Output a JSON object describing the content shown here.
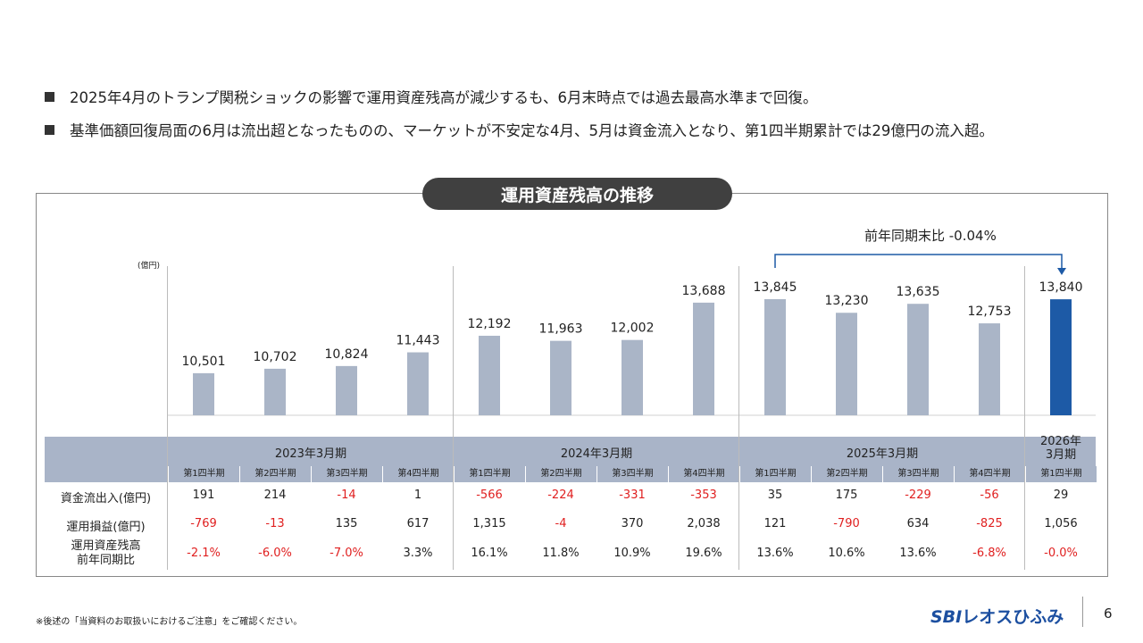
{
  "bullets": [
    "2025年4月のトランプ関税ショックの影響で運用資産残高が減少するも、6月末時点では過去最高水準まで回復。",
    "基準価額回復局面の6月は流出超となったものの、マーケットが不安定な4月、5月は資金流入となり、第1四半期累計では29億円の流入超。"
  ],
  "chart_title": "運用資産残高の推移",
  "chart_data": {
    "type": "bar",
    "title": "運用資産残高の推移",
    "ylabel": "(億円)",
    "categories": [
      "2023年3月期 第1四半期",
      "2023年3月期 第2四半期",
      "2023年3月期 第3四半期",
      "2023年3月期 第4四半期",
      "2024年3月期 第1四半期",
      "2024年3月期 第2四半期",
      "2024年3月期 第3四半期",
      "2024年3月期 第4四半期",
      "2025年3月期 第1四半期",
      "2025年3月期 第2四半期",
      "2025年3月期 第3四半期",
      "2025年3月期 第4四半期",
      "2026年3月期 第1四半期"
    ],
    "values": [
      10501,
      10702,
      10824,
      11443,
      12192,
      11963,
      12002,
      13688,
      13845,
      13230,
      13635,
      12753,
      13840
    ],
    "value_labels": [
      "10,501",
      "10,702",
      "10,824",
      "11,443",
      "12,192",
      "11,963",
      "12,002",
      "13,688",
      "13,845",
      "13,230",
      "13,635",
      "12,753",
      "13,840"
    ],
    "highlight_index": 12,
    "colors": {
      "bar": "#aab5c7",
      "highlight": "#1d5aa6"
    },
    "annotation": "前年同期末比 -0.04%"
  },
  "table": {
    "years": [
      "2023年3月期",
      "2024年3月期",
      "2025年3月期",
      "2026年\n3月期"
    ],
    "quarters": [
      "第1四半期",
      "第2四半期",
      "第3四半期",
      "第4四半期",
      "第1四半期",
      "第2四半期",
      "第3四半期",
      "第4四半期",
      "第1四半期",
      "第2四半期",
      "第3四半期",
      "第4四半期",
      "第1四半期"
    ],
    "rows": [
      {
        "label": "資金流出入(億円)",
        "values": [
          "191",
          "214",
          "-14",
          "1",
          "-566",
          "-224",
          "-331",
          "-353",
          "35",
          "175",
          "-229",
          "-56",
          "29"
        ]
      },
      {
        "label": "運用損益(億円)",
        "values": [
          "-769",
          "-13",
          "135",
          "617",
          "1,315",
          "-4",
          "370",
          "2,038",
          "121",
          "-790",
          "634",
          "-825",
          "1,056"
        ]
      },
      {
        "label": "運用資産残高\n前年同期比",
        "values": [
          "-2.1%",
          "-6.0%",
          "-7.0%",
          "3.3%",
          "16.1%",
          "11.8%",
          "10.9%",
          "19.6%",
          "13.6%",
          "10.6%",
          "13.6%",
          "-6.8%",
          "-0.0%"
        ]
      }
    ]
  },
  "footnote": "※後述の「当資料のお取扱いにおけるご注意」をご確認ください。",
  "logo": {
    "brand": "SBI",
    "name": "レオスひふみ"
  },
  "page_number": "6"
}
